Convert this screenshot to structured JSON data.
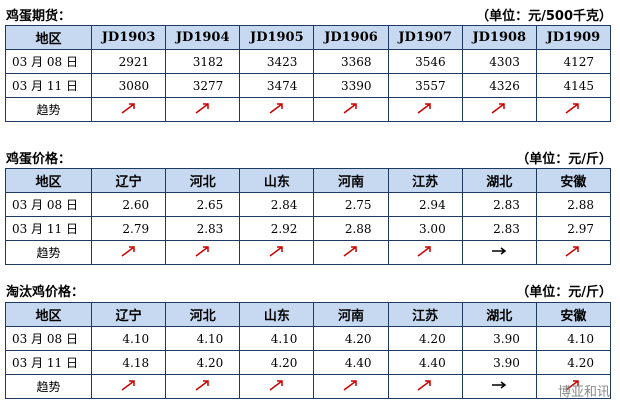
{
  "tables": [
    {
      "title": "鸡蛋期货：",
      "unit": "（单位：元/500千克）",
      "header": [
        "地区",
        "JD1903",
        "JD1904",
        "JD1905",
        "JD1906",
        "JD1907",
        "JD1908",
        "JD1909"
      ],
      "rows": [
        [
          "03 月 08 日",
          "2921",
          "3182",
          "3423",
          "3368",
          "3546",
          "4303",
          "4127"
        ],
        [
          "03 月 11 日",
          "3080",
          "3277",
          "3474",
          "3390",
          "3557",
          "4326",
          "4145"
        ]
      ],
      "trend_label": "趋势"
    },
    {
      "title": "鸡蛋价格：",
      "unit": "（单位：元/斤）",
      "header": [
        "地区",
        "辽宁",
        "河北",
        "山东",
        "河南",
        "江苏",
        "湖北",
        "安徽"
      ],
      "rows": [
        [
          "03 月 08 日",
          "2.60",
          "2.65",
          "2.84",
          "2.75",
          "2.94",
          "2.83",
          "2.88"
        ],
        [
          "03 月 11 日",
          "2.79",
          "2.83",
          "2.92",
          "2.88",
          "3.00",
          "2.83",
          "2.97"
        ]
      ],
      "trend_label": "趋势"
    },
    {
      "title": "淘汰鸡价格：",
      "unit": "（单位：元/斤）",
      "header": [
        "地区",
        "辽宁",
        "河北",
        "山东",
        "河南",
        "江苏",
        "湖北",
        "安徽"
      ],
      "rows": [
        [
          "03 月 08 日",
          "4.10",
          "4.10",
          "4.10",
          "4.20",
          "4.20",
          "3.90",
          "4.10"
        ],
        [
          "03 月 11 日",
          "4.18",
          "4.20",
          "4.20",
          "4.40",
          "4.40",
          "3.90",
          "4.20"
        ]
      ],
      "trend_label": "趋势"
    }
  ],
  "watermark": "博亚和讯"
}
